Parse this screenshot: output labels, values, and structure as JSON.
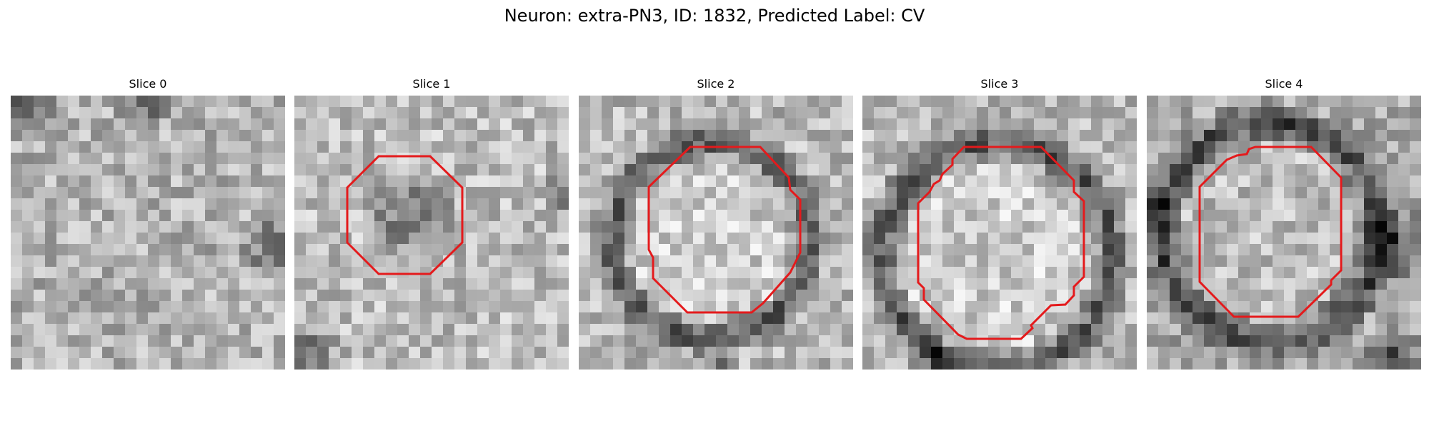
{
  "figure": {
    "title": "Neuron: extra-PN3, ID: 1832, Predicted Label: CV"
  },
  "contour_color": "#e41a1c",
  "panels": [
    {
      "title": "Slice 0",
      "has_contour": false
    },
    {
      "title": "Slice 1",
      "has_contour": true
    },
    {
      "title": "Slice 2",
      "has_contour": true
    },
    {
      "title": "Slice 3",
      "has_contour": true
    },
    {
      "title": "Slice 4",
      "has_contour": true
    }
  ]
}
